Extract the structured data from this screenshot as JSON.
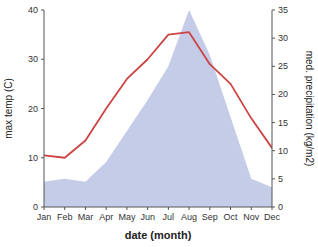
{
  "chart_data": {
    "type": "line",
    "xlabel": "date (month)",
    "ylabel": "max temp (C)",
    "y2label": "med. precipitation (kg/m2)",
    "categories": [
      "Jan",
      "Feb",
      "Mar",
      "Apr",
      "May",
      "Jun",
      "Jul",
      "Aug",
      "Sep",
      "Oct",
      "Nov",
      "Dec"
    ],
    "series": [
      {
        "type": "area",
        "axis": "y2",
        "color": "#c5cce8",
        "values": [
          4.5,
          5.0,
          4.5,
          8.0,
          13.5,
          19.0,
          25.0,
          35.0,
          27.0,
          16.0,
          5.0,
          3.5
        ]
      },
      {
        "type": "line",
        "color": "#cc4444",
        "values": [
          10.5,
          10.0,
          13.5,
          20.0,
          26.0,
          30.0,
          35.0,
          35.5,
          29.0,
          25.0,
          18.0,
          12.0
        ]
      }
    ],
    "ylim": [
      0,
      40
    ],
    "yticks": [
      0,
      10,
      20,
      30,
      40
    ],
    "y2lim": [
      0,
      35
    ],
    "y2ticks": [
      0,
      5,
      10,
      15,
      20,
      25,
      30,
      35
    ],
    "grid": false
  }
}
